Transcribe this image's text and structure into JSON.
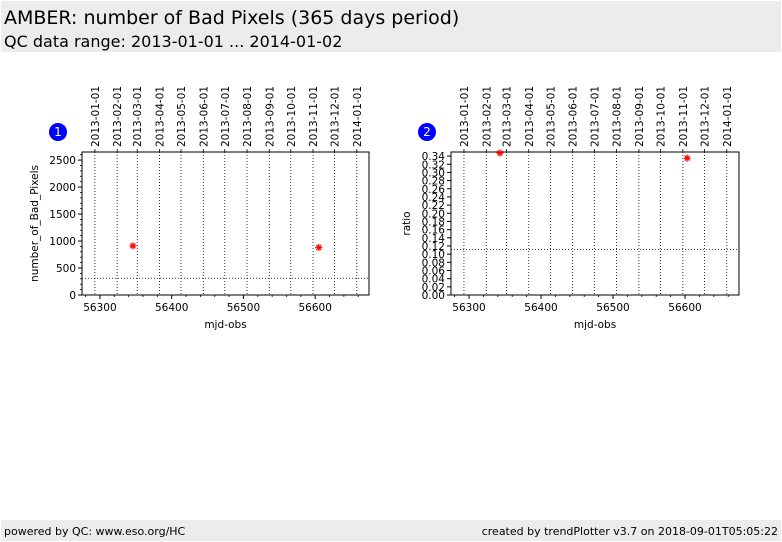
{
  "header": {
    "title": "AMBER: number of Bad Pixels (365 days period)",
    "subtitle": "QC data range: 2013-01-01 ... 2014-01-02"
  },
  "footer": {
    "left": "powered by QC: www.eso.org/HC",
    "right": "created by trendPlotter v3.7 on 2018-09-01T05:05:22"
  },
  "colors": {
    "header_bg": "#ececec",
    "point": "#ff0000",
    "badge": "#0000ff"
  },
  "chart_data": [
    {
      "type": "scatter",
      "badge": "1",
      "xlabel": "mjd-obs",
      "ylabel": "number_of_Bad_Pixels",
      "xlim": [
        56275,
        56675
      ],
      "ylim": [
        0,
        2650
      ],
      "x_ticks": [
        56300,
        56400,
        56500,
        56600
      ],
      "x_tick_labels": [
        "56300",
        "56400",
        "56500",
        "56600"
      ],
      "y_ticks": [
        0,
        500,
        1000,
        1500,
        2000,
        2500
      ],
      "y_tick_labels": [
        "0",
        "500",
        "1000",
        "1500",
        "2000",
        "2500"
      ],
      "date_ticks": [
        {
          "mjd": 56293,
          "label": "2013-01-01"
        },
        {
          "mjd": 56324,
          "label": "2013-02-01"
        },
        {
          "mjd": 56352,
          "label": "2013-03-01"
        },
        {
          "mjd": 56383,
          "label": "2013-04-01"
        },
        {
          "mjd": 56413,
          "label": "2013-05-01"
        },
        {
          "mjd": 56444,
          "label": "2013-06-01"
        },
        {
          "mjd": 56474,
          "label": "2013-07-01"
        },
        {
          "mjd": 56505,
          "label": "2013-08-01"
        },
        {
          "mjd": 56536,
          "label": "2013-09-01"
        },
        {
          "mjd": 56566,
          "label": "2013-10-01"
        },
        {
          "mjd": 56597,
          "label": "2013-11-01"
        },
        {
          "mjd": 56627,
          "label": "2013-12-01"
        },
        {
          "mjd": 56658,
          "label": "2014-01-01"
        }
      ],
      "hline": 310,
      "points": [
        {
          "x": 56346,
          "y": 910
        },
        {
          "x": 56605,
          "y": 880
        }
      ]
    },
    {
      "type": "scatter",
      "badge": "2",
      "xlabel": "mjd-obs",
      "ylabel": "ratio",
      "xlim": [
        56275,
        56675
      ],
      "ylim": [
        0,
        0.35
      ],
      "x_ticks": [
        56300,
        56400,
        56500,
        56600
      ],
      "x_tick_labels": [
        "56300",
        "56400",
        "56500",
        "56600"
      ],
      "y_ticks": [
        0,
        0.02,
        0.04,
        0.06,
        0.08,
        0.1,
        0.12,
        0.14,
        0.16,
        0.18,
        0.2,
        0.22,
        0.24,
        0.26,
        0.28,
        0.3,
        0.32,
        0.34
      ],
      "y_tick_labels": [
        "0.00",
        "0.02",
        "0.04",
        "0.06",
        "0.08",
        "0.10",
        "0.12",
        "0.14",
        "0.16",
        "0.18",
        "0.20",
        "0.22",
        "0.24",
        "0.26",
        "0.28",
        "0.30",
        "0.32",
        "0.34"
      ],
      "date_ticks": [
        {
          "mjd": 56293,
          "label": "2013-01-01"
        },
        {
          "mjd": 56324,
          "label": "2013-02-01"
        },
        {
          "mjd": 56352,
          "label": "2013-03-01"
        },
        {
          "mjd": 56383,
          "label": "2013-04-01"
        },
        {
          "mjd": 56413,
          "label": "2013-05-01"
        },
        {
          "mjd": 56444,
          "label": "2013-06-01"
        },
        {
          "mjd": 56474,
          "label": "2013-07-01"
        },
        {
          "mjd": 56505,
          "label": "2013-08-01"
        },
        {
          "mjd": 56536,
          "label": "2013-09-01"
        },
        {
          "mjd": 56566,
          "label": "2013-10-01"
        },
        {
          "mjd": 56597,
          "label": "2013-11-01"
        },
        {
          "mjd": 56627,
          "label": "2013-12-01"
        },
        {
          "mjd": 56658,
          "label": "2014-01-01"
        }
      ],
      "hline": 0.111,
      "points": [
        {
          "x": 56343,
          "y": 0.35
        },
        {
          "x": 56603,
          "y": 0.335
        }
      ]
    }
  ]
}
